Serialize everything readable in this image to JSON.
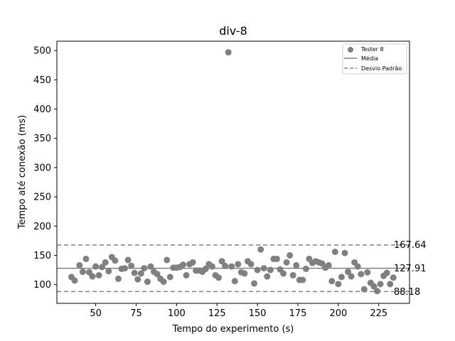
{
  "chart_data": {
    "type": "scatter",
    "title": "div-8",
    "xlabel": "Tempo do experimento (s)",
    "ylabel": "Tempo até conexão (ms)",
    "xlim": [
      26,
      244
    ],
    "ylim": [
      68,
      516
    ],
    "x_ticks": [
      50,
      75,
      100,
      125,
      150,
      175,
      200,
      225
    ],
    "y_ticks": [
      100,
      150,
      200,
      250,
      300,
      350,
      400,
      450,
      500
    ],
    "grid": false,
    "legend_position": "top-right",
    "legend": {
      "points_label": "Tester 8",
      "mean_label": "Média",
      "std_label": "Desvio Padrão"
    },
    "colors": {
      "points": "#808080",
      "lines": "#808080"
    },
    "mean": 127.91,
    "upper": 167.64,
    "lower": 88.18,
    "mean_text": "127.91",
    "upper_text": "167.64",
    "lower_text": "88.18",
    "series": [
      {
        "name": "Tester 8",
        "points": [
          [
            35,
            113
          ],
          [
            37,
            107
          ],
          [
            40,
            133
          ],
          [
            42,
            122
          ],
          [
            44,
            144
          ],
          [
            46,
            121
          ],
          [
            48,
            114
          ],
          [
            50,
            131
          ],
          [
            52,
            116
          ],
          [
            54,
            130
          ],
          [
            56,
            138
          ],
          [
            58,
            123
          ],
          [
            60,
            147
          ],
          [
            62,
            141
          ],
          [
            64,
            110
          ],
          [
            66,
            127
          ],
          [
            68,
            128
          ],
          [
            70,
            142
          ],
          [
            72,
            132
          ],
          [
            74,
            120
          ],
          [
            76,
            109
          ],
          [
            78,
            119
          ],
          [
            80,
            128
          ],
          [
            82,
            105
          ],
          [
            84,
            131
          ],
          [
            86,
            122
          ],
          [
            88,
            118
          ],
          [
            90,
            110
          ],
          [
            92,
            105
          ],
          [
            94,
            142
          ],
          [
            96,
            113
          ],
          [
            98,
            129
          ],
          [
            100,
            129
          ],
          [
            102,
            130
          ],
          [
            104,
            134
          ],
          [
            106,
            116
          ],
          [
            108,
            135
          ],
          [
            110,
            138
          ],
          [
            112,
            124
          ],
          [
            114,
            124
          ],
          [
            116,
            122
          ],
          [
            118,
            127
          ],
          [
            120,
            135
          ],
          [
            122,
            131
          ],
          [
            124,
            116
          ],
          [
            126,
            112
          ],
          [
            128,
            140
          ],
          [
            130,
            132
          ],
          [
            132,
            497
          ],
          [
            134,
            131
          ],
          [
            136,
            106
          ],
          [
            138,
            135
          ],
          [
            140,
            121
          ],
          [
            142,
            119
          ],
          [
            144,
            140
          ],
          [
            146,
            135
          ],
          [
            148,
            102
          ],
          [
            150,
            125
          ],
          [
            152,
            160
          ],
          [
            154,
            128
          ],
          [
            156,
            114
          ],
          [
            158,
            125
          ],
          [
            160,
            144
          ],
          [
            162,
            144
          ],
          [
            164,
            126
          ],
          [
            166,
            119
          ],
          [
            168,
            138
          ],
          [
            170,
            150
          ],
          [
            172,
            116
          ],
          [
            174,
            133
          ],
          [
            176,
            108
          ],
          [
            178,
            108
          ],
          [
            180,
            127
          ],
          [
            182,
            144
          ],
          [
            184,
            137
          ],
          [
            186,
            140
          ],
          [
            188,
            138
          ],
          [
            190,
            136
          ],
          [
            192,
            129
          ],
          [
            194,
            133
          ],
          [
            196,
            106
          ],
          [
            198,
            156
          ],
          [
            200,
            101
          ],
          [
            202,
            113
          ],
          [
            204,
            154
          ],
          [
            206,
            122
          ],
          [
            208,
            114
          ],
          [
            210,
            138
          ],
          [
            212,
            131
          ],
          [
            214,
            118
          ],
          [
            216,
            92
          ],
          [
            218,
            121
          ],
          [
            220,
            103
          ],
          [
            222,
            97
          ],
          [
            224,
            89
          ],
          [
            226,
            101
          ],
          [
            228,
            115
          ],
          [
            230,
            120
          ],
          [
            232,
            101
          ],
          [
            234,
            112
          ]
        ]
      }
    ]
  }
}
